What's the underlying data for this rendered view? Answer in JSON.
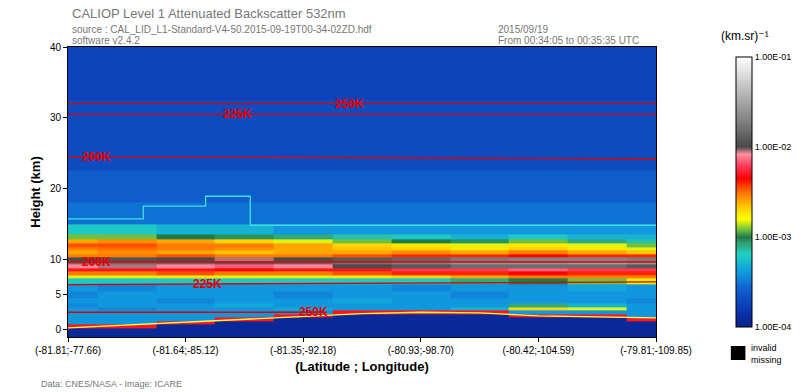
{
  "chart_data": {
    "type": "heatmap",
    "title": "CALIOP Level 1 Attenuated Backscatter 532nm",
    "subtitle": [
      "source : CAL_LID_L1-Standard-V4-50.2015-09-19T00-34-02ZD.hdf",
      "software v2.4.2"
    ],
    "annotations": [
      "2015/09/19",
      "From 00:34:05 to 00:35:35 UTC",
      "Data: CNES/NASA - Image: ICARE"
    ],
    "missing_legend": [
      "invalid",
      "missing"
    ],
    "x_label": "(Latitude ; Longitude)",
    "y_label": "Height (km)",
    "xlim": [
      0,
      5
    ],
    "xticks": [
      {
        "value": 0,
        "label": "(-81.81;-77.66)"
      },
      {
        "value": 1,
        "label": "(-81.64;-85.12)"
      },
      {
        "value": 2,
        "label": "(-81.35;-92.18)"
      },
      {
        "value": 3,
        "label": "(-80.93;-98.70)"
      },
      {
        "value": 4,
        "label": "(-80.42;-104.59)"
      },
      {
        "value": 5,
        "label": "(-79.81;-109.85)"
      }
    ],
    "ylim": [
      -1,
      40
    ],
    "yticks": [
      0,
      5,
      10,
      20,
      30,
      40
    ],
    "x": [
      0,
      0.5,
      1,
      1.5,
      2,
      2.5,
      3,
      3.5,
      4,
      4.5,
      5
    ],
    "y": [
      -1,
      -0.5,
      0,
      0.5,
      1,
      1.5,
      2,
      2.5,
      3,
      3.5,
      4,
      5,
      6,
      7,
      7.5,
      8,
      8.5,
      9,
      9.5,
      10,
      10.5,
      11,
      11.5,
      12,
      12.5,
      13,
      14,
      16,
      20,
      25,
      30,
      35,
      40
    ],
    "cells": [
      [
        0.00012,
        0.00012,
        0.00012,
        0.00012,
        0.00012,
        0.00012,
        0.00012,
        0.00012,
        0.00012,
        0.00012,
        0.00012
      ],
      [
        0.00012,
        0.00012,
        0.00012,
        0.00012,
        0.00012,
        0.00012,
        0.00012,
        0.00012,
        0.00012,
        0.00012,
        0.00012
      ],
      [
        0.00012,
        0.00012,
        0.00012,
        0.00012,
        0.00012,
        0.00012,
        0.00012,
        0.00012,
        0.00012,
        0.00012,
        0.00012
      ],
      [
        0.005,
        0.005,
        0.00012,
        0.00012,
        0.00012,
        0.00012,
        0.00012,
        0.00012,
        0.00012,
        0.00012,
        0.00012
      ],
      [
        0.0004,
        0.0004,
        0.005,
        0.00012,
        0.00012,
        0.00012,
        0.00012,
        0.00012,
        0.00012,
        0.00012,
        0.00012
      ],
      [
        0.0004,
        0.0004,
        0.0004,
        0.005,
        0.00012,
        0.00012,
        0.00012,
        0.00012,
        0.00012,
        0.00012,
        0.005
      ],
      [
        0.0004,
        0.0004,
        0.0004,
        0.0004,
        0.005,
        0.00012,
        0.00012,
        0.00012,
        0.005,
        0.005,
        0.0004
      ],
      [
        0.0004,
        0.0004,
        0.0004,
        0.0004,
        0.0004,
        0.005,
        0.005,
        0.005,
        0.0004,
        0.0004,
        0.0004
      ],
      [
        0.0004,
        0.00035,
        0.0004,
        0.0004,
        0.00045,
        0.0004,
        0.0004,
        0.0005,
        0.002,
        0.0015,
        0.0004
      ],
      [
        0.00035,
        0.0004,
        0.0004,
        0.00045,
        0.0004,
        0.0004,
        0.0004,
        0.0004,
        0.0008,
        0.0005,
        0.0004
      ],
      [
        0.0004,
        0.0004,
        0.00035,
        0.0004,
        0.0004,
        0.00045,
        0.0004,
        0.0004,
        0.0004,
        0.0004,
        0.00035
      ],
      [
        0.00035,
        0.0004,
        0.0004,
        0.0004,
        0.00035,
        0.0004,
        0.0004,
        0.00035,
        0.0004,
        0.0004,
        0.0004
      ],
      [
        0.0004,
        0.00035,
        0.0004,
        0.0004,
        0.0004,
        0.0004,
        0.00035,
        0.0004,
        0.0004,
        0.00045,
        0.0004
      ],
      [
        0.0006,
        0.0006,
        0.0006,
        0.0006,
        0.0006,
        0.0006,
        0.0006,
        0.0008,
        0.001,
        0.0012,
        0.0015
      ],
      [
        0.0015,
        0.0015,
        0.0018,
        0.0015,
        0.0015,
        0.0018,
        0.002,
        0.0025,
        0.003,
        0.003,
        0.003
      ],
      [
        0.003,
        0.003,
        0.0035,
        0.003,
        0.003,
        0.0035,
        0.004,
        0.004,
        0.0045,
        0.004,
        0.004
      ],
      [
        0.005,
        0.005,
        0.005,
        0.0045,
        0.005,
        0.005,
        0.006,
        0.006,
        0.007,
        0.006,
        0.006
      ],
      [
        0.008,
        0.009,
        0.008,
        0.007,
        0.008,
        0.01,
        0.012,
        0.015,
        0.015,
        0.015,
        0.012
      ],
      [
        0.015,
        0.015,
        0.014,
        0.012,
        0.014,
        0.016,
        0.02,
        0.025,
        0.025,
        0.03,
        0.025
      ],
      [
        0.01,
        0.011,
        0.01,
        0.009,
        0.01,
        0.012,
        0.014,
        0.018,
        0.02,
        0.02,
        0.018
      ],
      [
        0.003,
        0.003,
        0.0035,
        0.003,
        0.003,
        0.0035,
        0.004,
        0.004,
        0.0045,
        0.004,
        0.004
      ],
      [
        0.0025,
        0.0028,
        0.0025,
        0.0022,
        0.0025,
        0.0025,
        0.0028,
        0.0025,
        0.003,
        0.0025,
        0.0022
      ],
      [
        0.003,
        0.0032,
        0.003,
        0.0028,
        0.0025,
        0.0022,
        0.002,
        0.0018,
        0.002,
        0.0018,
        0.0015
      ],
      [
        0.0035,
        0.0035,
        0.003,
        0.003,
        0.0025,
        0.002,
        0.0018,
        0.0015,
        0.0018,
        0.0015,
        0.0012
      ],
      [
        0.0025,
        0.0028,
        0.0025,
        0.002,
        0.0015,
        0.0012,
        0.001,
        0.0009,
        0.0012,
        0.0008,
        0.0007
      ],
      [
        0.0012,
        0.0012,
        0.001,
        0.0009,
        0.0008,
        0.0007,
        0.0006,
        0.0005,
        0.0006,
        0.0005,
        0.0005
      ],
      [
        0.0006,
        0.0006,
        0.0005,
        0.0005,
        0.0004,
        0.0004,
        0.0004,
        0.0004,
        0.0004,
        0.0004,
        0.0004
      ],
      [
        0.0003,
        0.0003,
        0.0003,
        0.0003,
        0.0003,
        0.0003,
        0.0003,
        0.0003,
        0.0003,
        0.0003,
        0.0003
      ],
      [
        0.00025,
        0.00025,
        0.00025,
        0.00025,
        0.00025,
        0.00025,
        0.00025,
        0.00025,
        0.00025,
        0.00025,
        0.00025
      ],
      [
        0.0002,
        0.0002,
        0.0002,
        0.0002,
        0.0002,
        0.0002,
        0.0002,
        0.0002,
        0.0002,
        0.0002,
        0.0002
      ],
      [
        0.0002,
        0.0002,
        0.0002,
        0.0002,
        0.0002,
        0.0002,
        0.0002,
        0.0002,
        0.0002,
        0.0002,
        0.0002
      ],
      [
        0.00018,
        0.00018,
        0.00018,
        0.00018,
        0.00018,
        0.00018,
        0.00018,
        0.00018,
        0.00018,
        0.00018,
        0.00018
      ],
      [
        0.00018,
        0.00018,
        0.00018,
        0.00018,
        0.00018,
        0.00018,
        0.00018,
        0.00018,
        0.00018,
        0.00018,
        0.00018
      ]
    ],
    "colorbar": {
      "title": "(km.sr)⁻¹",
      "log": true,
      "range": [
        0.0001,
        0.1
      ],
      "ticks": [
        {
          "value": 0.0001,
          "label": "1.00E-04"
        },
        {
          "value": 0.001,
          "label": "1.00E-03"
        },
        {
          "value": 0.01,
          "label": "1.00E-02"
        },
        {
          "value": 0.1,
          "label": "1.00E-01"
        }
      ]
    },
    "series": [
      {
        "name": "200K",
        "color": "#e00000",
        "line_style": "solid",
        "x": [
          0,
          5
        ],
        "values": [
          9.6,
          9.6
        ]
      },
      {
        "name": "225K",
        "color": "#e00000",
        "line_style": "solid",
        "x": [
          0,
          5
        ],
        "values": [
          6.4,
          6.8
        ]
      },
      {
        "name": "250K",
        "color": "#e00000",
        "line_style": "solid",
        "x": [
          0,
          2.2
        ],
        "values": [
          2.5,
          2.5
        ]
      },
      {
        "name": "200K",
        "color": "#e00000",
        "line_style": "solid",
        "x": [
          0,
          5
        ],
        "values": [
          24.5,
          24.2
        ]
      },
      {
        "name": "225K",
        "color": "#e00000",
        "line_style": "solid",
        "x": [
          0,
          5
        ],
        "values": [
          30.5,
          30.5
        ]
      },
      {
        "name": "250K",
        "color": "#e00000",
        "line_style": "solid",
        "x": [
          0,
          5
        ],
        "values": [
          32,
          32
        ]
      },
      {
        "color": "#40e0e0",
        "line_style": "step",
        "x": [
          0,
          0.64,
          1.17,
          1.55,
          5
        ],
        "values": [
          15.7,
          17.5,
          18.9,
          14.8,
          14.8
        ]
      },
      {
        "color": "#ffff40",
        "line_style": "solid",
        "x": [
          0,
          0.5,
          1,
          1.5,
          2,
          2.5,
          3,
          3.5,
          4,
          4.5,
          5
        ],
        "values": [
          0.3,
          0.7,
          1.0,
          1.4,
          1.9,
          2.3,
          2.5,
          2.4,
          2.0,
          1.8,
          1.7
        ]
      }
    ]
  }
}
